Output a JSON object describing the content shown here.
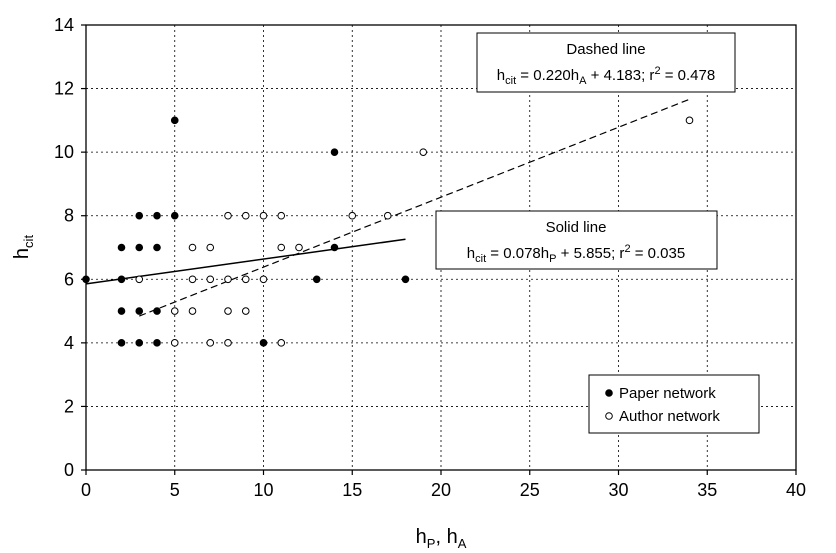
{
  "chart_data": {
    "type": "scatter",
    "xlabel": {
      "main": "h",
      "sub1": "P",
      "sep": ", ",
      "main2": "h",
      "sub2": "A"
    },
    "ylabel": {
      "main": "h",
      "sub": "cit"
    },
    "xlim": [
      0,
      40
    ],
    "ylim": [
      0,
      14
    ],
    "xticks": [
      0,
      5,
      10,
      15,
      20,
      25,
      30,
      35,
      40
    ],
    "yticks": [
      0,
      2,
      4,
      6,
      8,
      10,
      12,
      14
    ],
    "grid": true,
    "legend_position": "bottom-right",
    "series": [
      {
        "name": "Paper network",
        "marker": "filled-circle",
        "color": "#000000",
        "points": [
          [
            0,
            6
          ],
          [
            2,
            4
          ],
          [
            2,
            5
          ],
          [
            2,
            6
          ],
          [
            2,
            7
          ],
          [
            3,
            4
          ],
          [
            3,
            5
          ],
          [
            3,
            7
          ],
          [
            3,
            8
          ],
          [
            4,
            4
          ],
          [
            4,
            5
          ],
          [
            4,
            7
          ],
          [
            4,
            8
          ],
          [
            5,
            8
          ],
          [
            5,
            11
          ],
          [
            10,
            4
          ],
          [
            13,
            6
          ],
          [
            14,
            7
          ],
          [
            14,
            10
          ],
          [
            18,
            6
          ]
        ]
      },
      {
        "name": "Author network",
        "marker": "open-circle",
        "color": "#000000",
        "points": [
          [
            3,
            6
          ],
          [
            5,
            4
          ],
          [
            5,
            5
          ],
          [
            6,
            5
          ],
          [
            6,
            6
          ],
          [
            6,
            7
          ],
          [
            7,
            4
          ],
          [
            7,
            6
          ],
          [
            7,
            7
          ],
          [
            8,
            4
          ],
          [
            8,
            5
          ],
          [
            8,
            6
          ],
          [
            8,
            8
          ],
          [
            9,
            5
          ],
          [
            9,
            6
          ],
          [
            9,
            8
          ],
          [
            10,
            6
          ],
          [
            10,
            8
          ],
          [
            11,
            4
          ],
          [
            11,
            7
          ],
          [
            11,
            8
          ],
          [
            12,
            7
          ],
          [
            15,
            8
          ],
          [
            17,
            8
          ],
          [
            19,
            10
          ],
          [
            34,
            11
          ]
        ]
      }
    ],
    "fits": [
      {
        "style": "solid",
        "slope": 0.078,
        "intercept": 5.855,
        "x_range": [
          0,
          18
        ],
        "label_title": "Solid line",
        "eq_lhs": "h",
        "eq_lhs_sub": "cit",
        "eq_mid": " = 0.078h",
        "eq_var_sub": "P",
        "eq_rest": " + 5.855; r",
        "eq_sup": "2",
        "eq_end": " = 0.035"
      },
      {
        "style": "dashed",
        "slope": 0.22,
        "intercept": 4.183,
        "x_range": [
          3,
          34
        ],
        "label_title": "Dashed line",
        "eq_lhs": "h",
        "eq_lhs_sub": "cit",
        "eq_mid": " = 0.220h",
        "eq_var_sub": "A",
        "eq_rest": " + 4.183; r",
        "eq_sup": "2",
        "eq_end": " = 0.478"
      }
    ]
  }
}
